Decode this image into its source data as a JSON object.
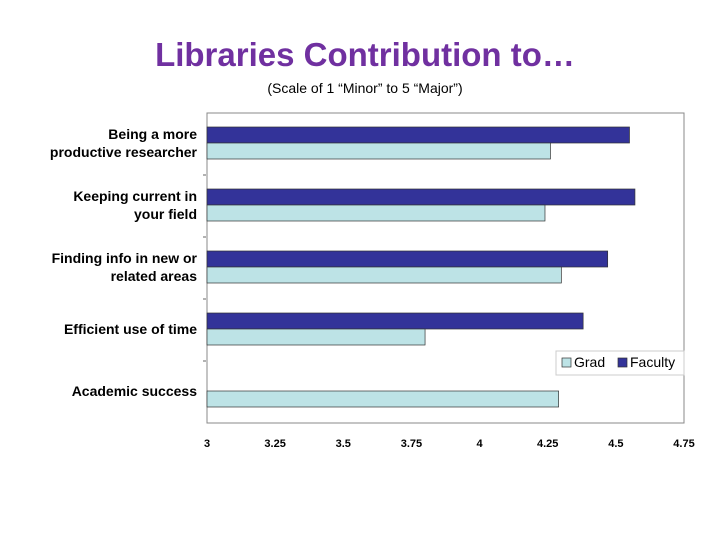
{
  "title": "Libraries Contribution to…",
  "subtitle": "(Scale of 1 “Minor” to 5 “Major”)",
  "colors": {
    "title": "#7030A0",
    "faculty": "#333399",
    "grad": "#BDE3E6"
  },
  "chart_data": {
    "type": "bar",
    "orientation": "horizontal",
    "categories": [
      [
        "Being a more",
        "productive researcher"
      ],
      [
        "Keeping current in",
        "your field"
      ],
      [
        "Finding info in new or",
        "related areas"
      ],
      [
        "Efficient use of time"
      ],
      [
        "Academic success"
      ]
    ],
    "series": [
      {
        "name": "Faculty",
        "values": [
          4.55,
          4.57,
          4.47,
          4.38,
          null
        ]
      },
      {
        "name": "Grad",
        "values": [
          4.26,
          4.24,
          4.3,
          3.8,
          4.29
        ]
      }
    ],
    "xlim": [
      3,
      4.75
    ],
    "xticks": [
      "3",
      "3.25",
      "3.5",
      "3.75",
      "4",
      "4.25",
      "4.5",
      "4.75"
    ],
    "legend": {
      "position": "lower-right",
      "entries": [
        "Grad",
        "Faculty"
      ]
    },
    "grid": false
  }
}
